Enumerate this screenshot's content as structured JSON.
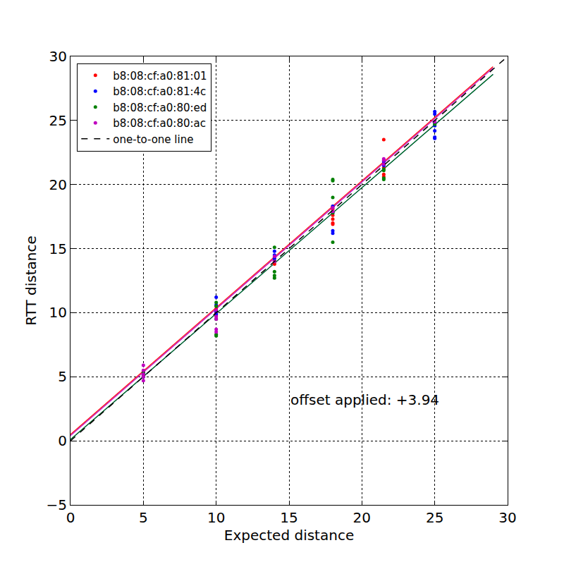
{
  "chart_data": {
    "type": "scatter",
    "xlabel": "Expected distance",
    "ylabel": "RTT distance",
    "annotation": "offset applied: +3.94",
    "xlim": [
      0,
      30
    ],
    "xticks": [
      0,
      5,
      10,
      15,
      20,
      25,
      30
    ],
    "ylim": [
      -5,
      30
    ],
    "yticks": [
      {
        "value": -5,
        "label": "−5"
      },
      0,
      5,
      10,
      15,
      20,
      25,
      30
    ],
    "grid": true,
    "legend": "upper left",
    "marker": "circle",
    "series": [
      {
        "name": "b8:08:cf:a0:81:01",
        "color": "#ff0000",
        "x": [
          5,
          5,
          5,
          10,
          10,
          10,
          14,
          14,
          14,
          18,
          18,
          18,
          18,
          18,
          18,
          21.5,
          21.5,
          21.5,
          21.5,
          21.5
        ],
        "values": [
          5.2,
          5.4,
          5.0,
          10.0,
          9.8,
          10.3,
          14.0,
          14.3,
          13.8,
          17.0,
          17.3,
          16.9,
          18.1,
          18.3,
          17.6,
          21.3,
          21.6,
          20.8,
          23.5,
          20.6
        ],
        "fit_x": [
          0,
          29
        ],
        "fit_values": [
          0.5,
          29.2
        ]
      },
      {
        "name": "b8:08:cf:a0:81:4c",
        "color": "#0000ff",
        "x": [
          5,
          5,
          10,
          10,
          10,
          10,
          14,
          14,
          14,
          18,
          18,
          18,
          18,
          21.5,
          21.5,
          25,
          25,
          25,
          25,
          25,
          25,
          25
        ],
        "values": [
          5.3,
          5.0,
          11.2,
          10.1,
          9.9,
          10.6,
          14.5,
          14.8,
          14.2,
          16.2,
          16.4,
          17.8,
          18.3,
          21.5,
          21.8,
          25.7,
          25.5,
          24.8,
          24.6,
          24.2,
          23.7,
          23.6
        ],
        "fit_x": [
          0,
          29
        ],
        "fit_values": [
          0.1,
          28.6
        ]
      },
      {
        "name": "b8:08:cf:a0:80:ed",
        "color": "#008000",
        "x": [
          5,
          5,
          10,
          10,
          10,
          10,
          10,
          14,
          14,
          14,
          14,
          14,
          18,
          18,
          18,
          18,
          18,
          21.5,
          21.5,
          21.5,
          21.5,
          25
        ],
        "values": [
          5.1,
          5.3,
          8.3,
          8.2,
          10.5,
          10.8,
          9.5,
          12.7,
          12.9,
          13.2,
          15.1,
          14.0,
          20.4,
          20.3,
          19.0,
          15.5,
          17.8,
          20.5,
          20.4,
          21.1,
          21.2,
          24.7
        ],
        "fit_x": [
          0,
          29
        ],
        "fit_values": [
          0.1,
          28.6
        ]
      },
      {
        "name": "b8:08:cf:a0:80:ac",
        "color": "#bf00bf",
        "x": [
          5,
          5,
          5,
          5,
          5,
          10,
          10,
          10,
          10,
          10,
          14,
          14,
          18,
          18,
          21.5,
          21.5,
          21.5,
          25
        ],
        "values": [
          4.7,
          5.0,
          5.5,
          5.9,
          5.2,
          8.5,
          8.7,
          9.5,
          9.7,
          10.2,
          14.0,
          14.4,
          18.2,
          17.9,
          21.6,
          21.9,
          22.0,
          24.9
        ],
        "fit_x": [
          0,
          29
        ],
        "fit_values": [
          0.4,
          29.1
        ]
      },
      {
        "name": "one-to-one line",
        "type": "line",
        "line_style": "dashed",
        "color": "#000000",
        "x": [
          0,
          30
        ],
        "values": [
          0,
          30
        ]
      }
    ]
  }
}
